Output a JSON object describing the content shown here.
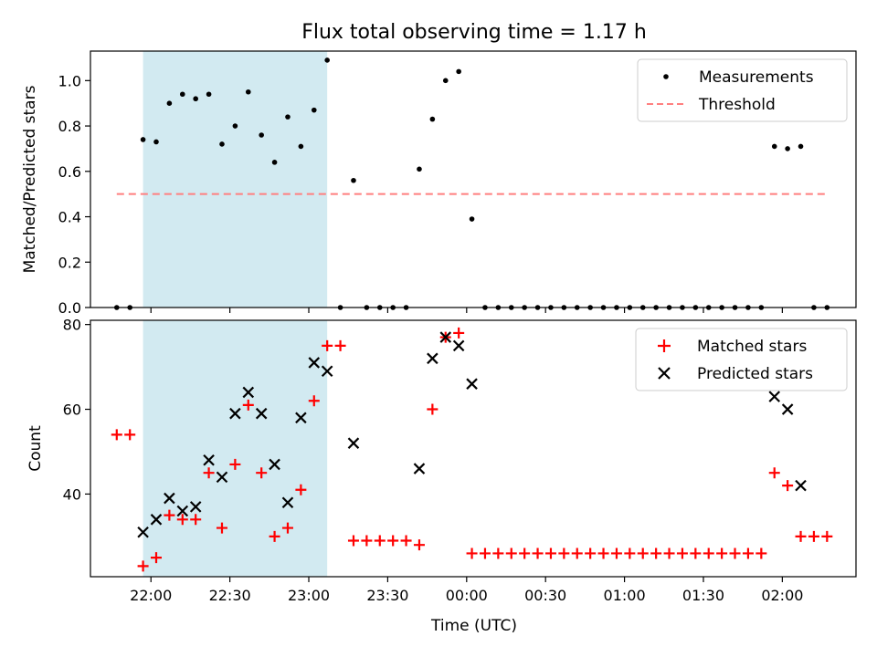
{
  "title": "Flux total observing time = 1.17 h",
  "x_tick_labels": [
    "22:00",
    "22:30",
    "23:00",
    "23:30",
    "00:00",
    "00:30",
    "01:00",
    "01:30",
    "02:00"
  ],
  "colors": {
    "measurement": "#000000",
    "threshold": "#ff7f7f",
    "matched": "#ff0000",
    "predicted": "#000000",
    "shade": "#add8e6"
  },
  "chart_data": [
    {
      "type": "scatter",
      "ylabel": "Matched/Predicted stars",
      "xlabel": "",
      "x_unit": "time of day (UTC), hours past 00:00 of first day",
      "xlim": [
        "21:37",
        "02:28"
      ],
      "ylim": [
        0,
        1.13
      ],
      "y_ticks": [
        "0.0",
        "0.2",
        "0.4",
        "0.6",
        "0.8",
        "1.0"
      ],
      "grid": false,
      "legend_position": "top-right",
      "shaded_span": [
        "21:57",
        "23:07"
      ],
      "series": [
        {
          "name": "Measurements",
          "x": [
            "21:47",
            "21:52",
            "21:57",
            "22:02",
            "22:07",
            "22:12",
            "22:17",
            "22:22",
            "22:27",
            "22:32",
            "22:37",
            "22:42",
            "22:47",
            "22:52",
            "22:57",
            "23:02",
            "23:07",
            "23:12",
            "23:17",
            "23:22",
            "23:27",
            "23:32",
            "23:37",
            "23:42",
            "23:47",
            "23:52",
            "23:57",
            "00:02",
            "00:07",
            "00:12",
            "00:17",
            "00:22",
            "00:27",
            "00:32",
            "00:37",
            "00:42",
            "00:47",
            "00:52",
            "00:57",
            "01:02",
            "01:07",
            "01:12",
            "01:17",
            "01:22",
            "01:27",
            "01:32",
            "01:37",
            "01:42",
            "01:47",
            "01:52",
            "01:57",
            "02:02",
            "02:07",
            "02:12",
            "02:17"
          ],
          "y": [
            0,
            0,
            0.74,
            0.73,
            0.9,
            0.94,
            0.92,
            0.94,
            0.72,
            0.8,
            0.95,
            0.76,
            0.64,
            0.84,
            0.71,
            0.87,
            1.09,
            0,
            0.56,
            0,
            0,
            0,
            0,
            0.61,
            0.83,
            1.0,
            1.04,
            0.39,
            0,
            0,
            0,
            0,
            0,
            0,
            0,
            0,
            0,
            0,
            0,
            0,
            0,
            0,
            0,
            0,
            0,
            0,
            0,
            0,
            0,
            0,
            0.71,
            0.7,
            0.71,
            0,
            0
          ]
        },
        {
          "name": "Threshold",
          "style": "dashed",
          "x": [
            "21:47",
            "02:17"
          ],
          "y": [
            0.5,
            0.5
          ]
        }
      ]
    },
    {
      "type": "scatter",
      "ylabel": "Count",
      "xlabel": "Time (UTC)",
      "xlim": [
        "21:37",
        "02:28"
      ],
      "ylim": [
        20.5,
        81
      ],
      "y_ticks": [
        "40",
        "60",
        "80"
      ],
      "grid": false,
      "legend_position": "top-right",
      "shaded_span": [
        "21:57",
        "23:07"
      ],
      "series": [
        {
          "name": "Matched stars",
          "marker": "+",
          "x": [
            "21:47",
            "21:52",
            "21:57",
            "22:02",
            "22:07",
            "22:12",
            "22:17",
            "22:22",
            "22:27",
            "22:32",
            "22:37",
            "22:42",
            "22:47",
            "22:52",
            "22:57",
            "23:02",
            "23:07",
            "23:12",
            "23:17",
            "23:22",
            "23:27",
            "23:32",
            "23:37",
            "23:42",
            "23:47",
            "23:52",
            "23:57",
            "00:02",
            "00:07",
            "00:12",
            "00:17",
            "00:22",
            "00:27",
            "00:32",
            "00:37",
            "00:42",
            "00:47",
            "00:52",
            "00:57",
            "01:02",
            "01:07",
            "01:12",
            "01:17",
            "01:22",
            "01:27",
            "01:32",
            "01:37",
            "01:42",
            "01:47",
            "01:52",
            "01:57",
            "02:02",
            "02:07",
            "02:12",
            "02:17"
          ],
          "y": [
            54,
            54,
            23,
            25,
            35,
            34,
            34,
            45,
            32,
            47,
            61,
            45,
            30,
            32,
            41,
            62,
            75,
            75,
            29,
            29,
            29,
            29,
            29,
            28,
            60,
            77,
            78,
            26,
            26,
            26,
            26,
            26,
            26,
            26,
            26,
            26,
            26,
            26,
            26,
            26,
            26,
            26,
            26,
            26,
            26,
            26,
            26,
            26,
            26,
            26,
            45,
            42,
            30,
            30,
            30
          ]
        },
        {
          "name": "Predicted stars",
          "marker": "x",
          "x": [
            "21:57",
            "22:02",
            "22:07",
            "22:12",
            "22:17",
            "22:22",
            "22:27",
            "22:32",
            "22:37",
            "22:42",
            "22:47",
            "22:52",
            "22:57",
            "23:02",
            "23:07",
            "23:17",
            "23:42",
            "23:47",
            "23:52",
            "23:57",
            "00:02",
            "01:57",
            "02:02",
            "02:07"
          ],
          "y": [
            31,
            34,
            39,
            36,
            37,
            48,
            44,
            59,
            64,
            59,
            47,
            38,
            58,
            71,
            69,
            52,
            46,
            72,
            77,
            75,
            66,
            63,
            60,
            42
          ]
        }
      ]
    }
  ]
}
